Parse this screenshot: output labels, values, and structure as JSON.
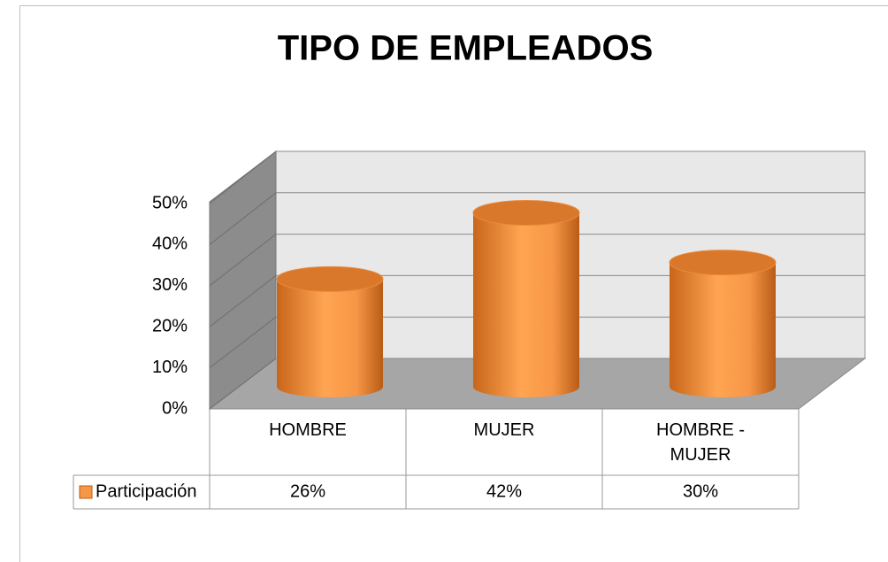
{
  "chart_data": {
    "type": "bar",
    "title": "TIPO DE EMPLEADOS",
    "categories": [
      "HOMBRE",
      "MUJER",
      "HOMBRE - MUJER"
    ],
    "series": [
      {
        "name": "Participación",
        "color": "#f79646",
        "values": [
          26,
          42,
          30
        ],
        "value_labels": [
          "26%",
          "42%",
          "30%"
        ]
      }
    ],
    "ylim": [
      0,
      50
    ],
    "yticks": [
      {
        "value": 0,
        "label": "0%"
      },
      {
        "value": 10,
        "label": "10%"
      },
      {
        "value": 20,
        "label": "20%"
      },
      {
        "value": 30,
        "label": "30%"
      },
      {
        "value": 40,
        "label": "40%"
      },
      {
        "value": 50,
        "label": "50%"
      }
    ],
    "grid": true
  }
}
